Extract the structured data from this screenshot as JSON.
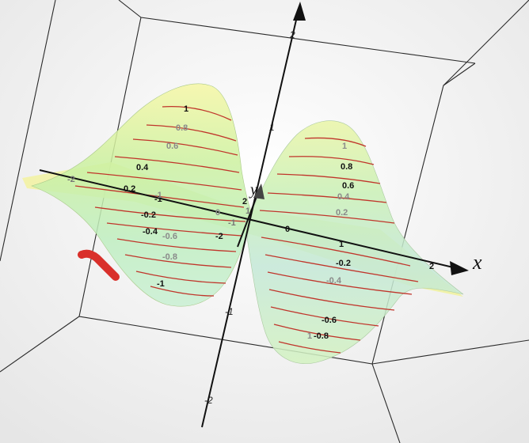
{
  "axes": {
    "x_label": "x",
    "y_label": "y",
    "x_ticks": [
      "-2",
      "-1",
      "0",
      "1",
      "2"
    ],
    "y_ticks": [
      "-2",
      "-1",
      "1",
      "2"
    ],
    "z_ticks": [
      "2",
      "1",
      "-1",
      "-2"
    ]
  },
  "contours": {
    "left_lobe_levels": [
      "1",
      "0.8",
      "0.6",
      "0.4",
      "0.2",
      "-0.2",
      "-0.4",
      "-0.6",
      "-0.8",
      "-1"
    ],
    "right_lobe_levels": [
      "1",
      "0.8",
      "0.6",
      "0.4",
      "0.2",
      "-0.2",
      "-0.4",
      "-0.6",
      "-0.8"
    ],
    "extra_labels": [
      "0",
      "-1",
      "1",
      "-0.8"
    ]
  },
  "colors": {
    "surface_top": "#f3f59a",
    "surface_mid": "#c8f0a6",
    "surface_low": "#b9e6c9",
    "contour": "#c0352b",
    "marker": "#d9302b",
    "frame": "#2a2a2a"
  }
}
